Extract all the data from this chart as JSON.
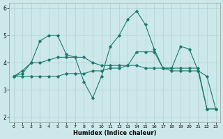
{
  "xlabel": "Humidex (Indice chaleur)",
  "xlim": [
    -0.5,
    23.5
  ],
  "ylim": [
    1.8,
    6.2
  ],
  "yticks": [
    2,
    3,
    4,
    5,
    6
  ],
  "xticks": [
    0,
    1,
    2,
    3,
    4,
    5,
    6,
    7,
    8,
    9,
    10,
    11,
    12,
    13,
    14,
    15,
    16,
    17,
    18,
    19,
    20,
    21,
    22,
    23
  ],
  "bg_color": "#cde8ea",
  "grid_color": "#b0d0d4",
  "line_color": "#1a7a6e",
  "lines": [
    {
      "x": [
        0,
        1,
        2,
        3,
        4,
        5,
        6,
        7,
        8,
        9,
        10,
        11,
        12,
        13,
        14,
        15,
        16,
        17,
        18,
        19,
        20,
        21,
        22,
        23
      ],
      "y": [
        3.5,
        3.7,
        4.0,
        4.8,
        5.0,
        5.0,
        4.3,
        4.2,
        3.3,
        2.7,
        3.5,
        4.6,
        5.0,
        5.6,
        5.9,
        5.4,
        4.5,
        3.8,
        3.8,
        4.6,
        4.5,
        3.7,
        3.5,
        2.3
      ]
    },
    {
      "x": [
        0,
        1,
        2,
        3,
        4,
        5,
        6,
        7,
        8,
        9,
        10,
        11,
        12,
        13,
        14,
        15,
        16,
        17,
        18,
        19,
        20,
        21,
        22,
        23
      ],
      "y": [
        3.5,
        3.6,
        4.0,
        4.0,
        4.1,
        4.2,
        4.2,
        4.2,
        4.2,
        4.0,
        3.9,
        3.9,
        3.9,
        3.9,
        4.4,
        4.4,
        4.4,
        3.8,
        3.8,
        3.8,
        3.8,
        3.8,
        2.3,
        2.3
      ]
    },
    {
      "x": [
        0,
        1,
        2,
        3,
        4,
        5,
        6,
        7,
        8,
        9,
        10,
        11,
        12,
        13,
        14,
        15,
        16,
        17,
        18,
        19,
        20,
        21,
        22,
        23
      ],
      "y": [
        3.5,
        3.5,
        3.5,
        3.5,
        3.5,
        3.5,
        3.6,
        3.6,
        3.6,
        3.7,
        3.7,
        3.8,
        3.8,
        3.9,
        3.9,
        3.8,
        3.8,
        3.8,
        3.7,
        3.7,
        3.7,
        3.7,
        2.3,
        2.3
      ]
    }
  ]
}
